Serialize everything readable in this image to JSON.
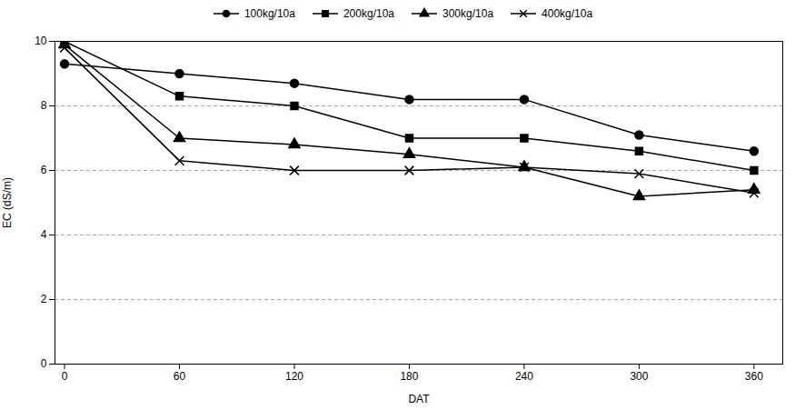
{
  "chart_data": {
    "type": "line",
    "x": [
      0,
      60,
      120,
      180,
      240,
      300,
      360
    ],
    "series": [
      {
        "name": "100kg/10a",
        "values": [
          9.3,
          9.0,
          8.7,
          8.2,
          8.2,
          7.1,
          6.6
        ],
        "color": "#000000",
        "marker": "circle",
        "line_style": "solid"
      },
      {
        "name": "200kg/10a",
        "values": [
          10.0,
          8.3,
          8.0,
          7.0,
          7.0,
          6.6,
          6.0
        ],
        "color": "#000000",
        "marker": "square",
        "line_style": "solid"
      },
      {
        "name": "300kg/10a",
        "values": [
          9.9,
          7.0,
          6.8,
          6.5,
          6.1,
          5.2,
          5.4
        ],
        "color": "#000000",
        "marker": "triangle",
        "line_style": "solid"
      },
      {
        "name": "400kg/10a",
        "values": [
          9.8,
          6.3,
          6.0,
          6.0,
          6.1,
          5.9,
          5.3
        ],
        "color": "#000000",
        "marker": "x",
        "line_style": "solid"
      }
    ],
    "x_label": "DAT",
    "y_label": "EC (dS/m)",
    "xlim": [
      -5,
      375
    ],
    "ylim": [
      0,
      10
    ],
    "xticks": [
      0,
      60,
      120,
      180,
      240,
      300,
      360
    ],
    "yticks": [
      0,
      2,
      4,
      6,
      8,
      10
    ],
    "grid": "y",
    "legend": "top"
  }
}
